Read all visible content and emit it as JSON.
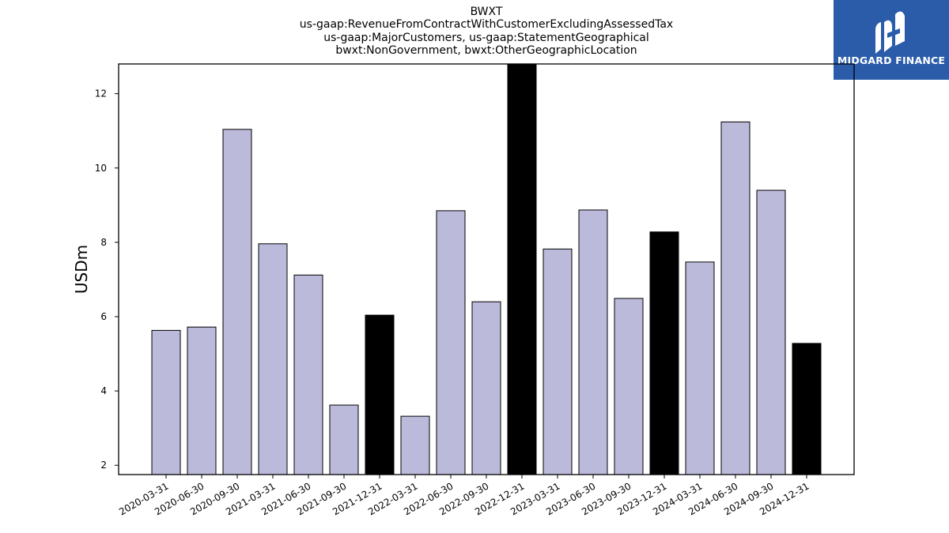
{
  "chart_data": {
    "type": "bar",
    "title_lines": [
      "BWXT",
      "us-gaap:RevenueFromContractWithCustomerExcludingAssessedTax",
      "us-gaap:MajorCustomers, us-gaap:StatementGeographical",
      "bwxt:NonGovernment, bwxt:OtherGeographicLocation"
    ],
    "xlabel": "",
    "ylabel": "USDm",
    "ylim": [
      1.75,
      12.8
    ],
    "yticks": [
      2,
      4,
      6,
      8,
      10,
      12
    ],
    "grid": false,
    "categories": [
      "2020-03-31",
      "2020-06-30",
      "2020-09-30",
      "2021-03-31",
      "2021-06-30",
      "2021-09-30",
      "2021-12-31",
      "2022-03-31",
      "2022-06-30",
      "2022-09-30",
      "2022-12-31",
      "2023-03-31",
      "2023-06-30",
      "2023-09-30",
      "2023-12-31",
      "2024-03-31",
      "2024-06-30",
      "2024-09-30",
      "2024-12-31"
    ],
    "values": [
      5.63,
      5.72,
      11.04,
      7.96,
      7.12,
      3.62,
      6.04,
      3.32,
      8.85,
      6.4,
      12.9,
      7.82,
      8.87,
      6.49,
      8.28,
      7.47,
      11.24,
      9.4,
      5.28
    ],
    "highlight": [
      false,
      false,
      false,
      false,
      false,
      false,
      true,
      false,
      false,
      false,
      true,
      false,
      false,
      false,
      true,
      false,
      false,
      false,
      true
    ],
    "colors": {
      "bar": "#bcbadb",
      "highlight": "#000000",
      "edge": "#000000"
    }
  },
  "logo": {
    "text": "MIDGARD FINANCE",
    "background": "#2a5caa"
  }
}
